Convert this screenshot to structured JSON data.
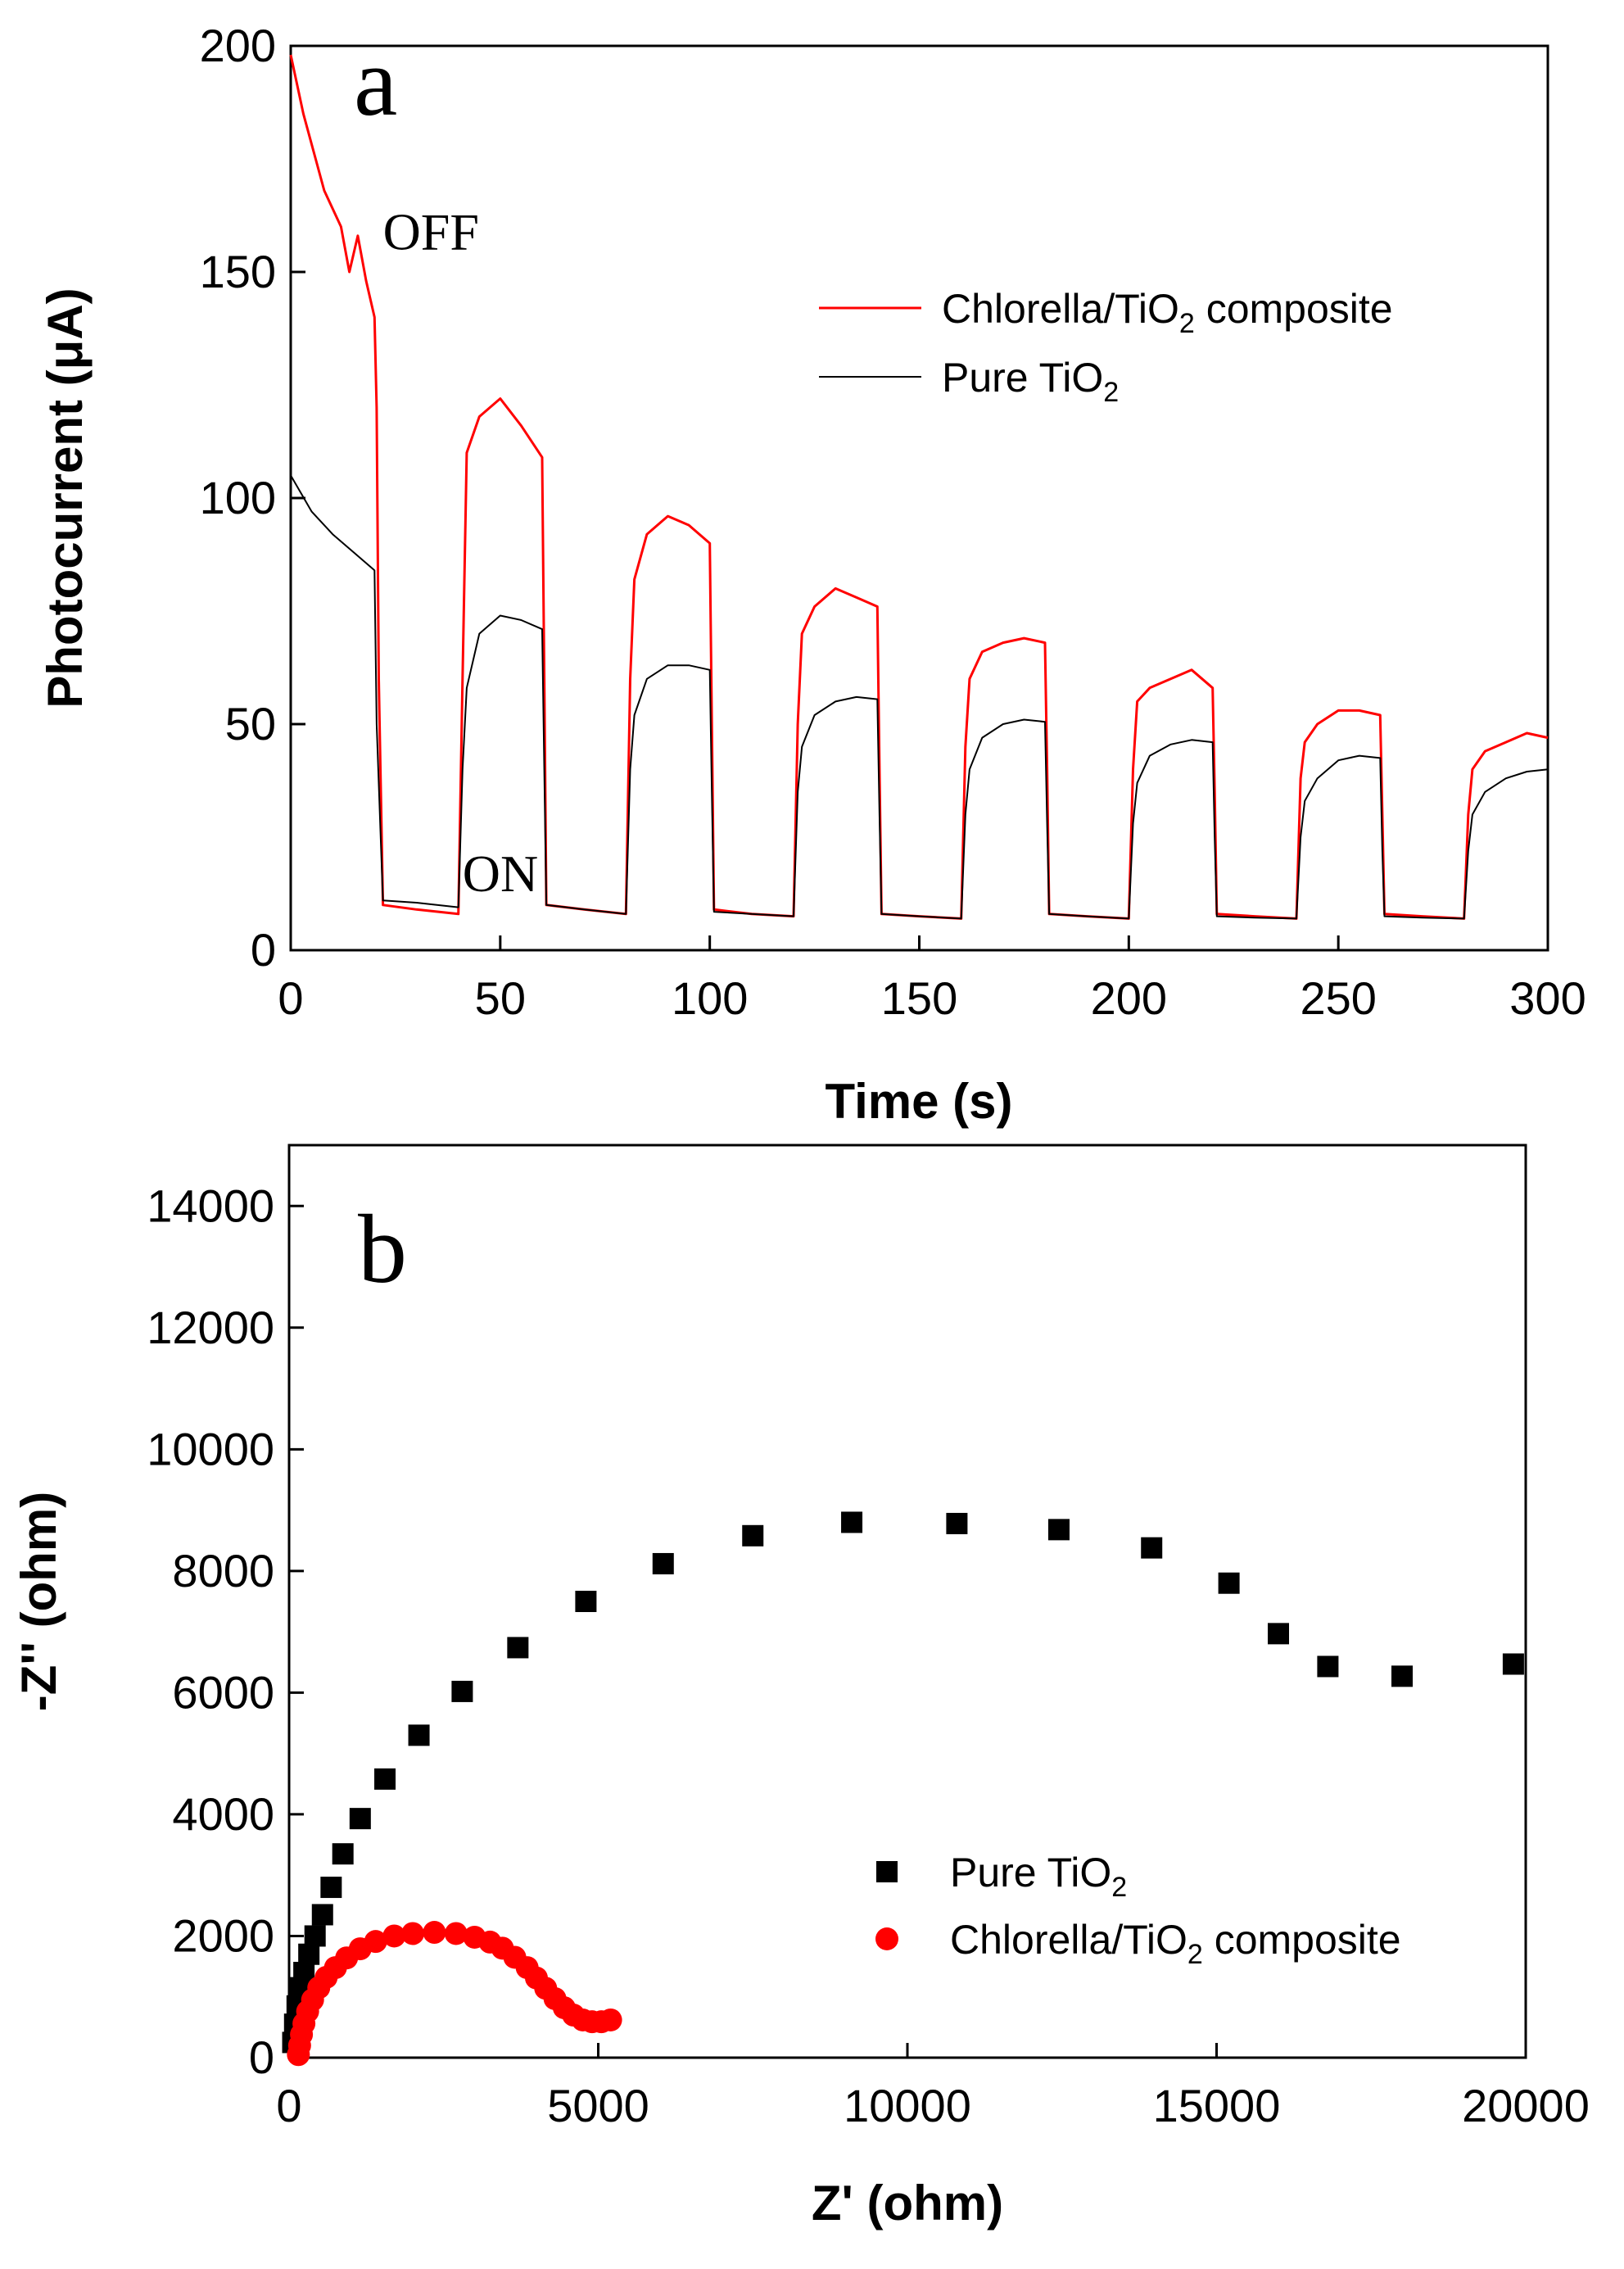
{
  "colors": {
    "red": "#ff0000",
    "black": "#000000"
  },
  "chart_data": [
    {
      "type": "line",
      "panel_label": "a",
      "xlabel": "Time (s)",
      "ylabel": "Photocurrent (μA)",
      "xlim": [
        0,
        300
      ],
      "ylim": [
        0,
        200
      ],
      "xticks": [
        "0",
        "50",
        "100",
        "150",
        "200",
        "250",
        "300"
      ],
      "yticks": [
        "0",
        "50",
        "100",
        "150",
        "200"
      ],
      "annotations": [
        {
          "text": "OFF",
          "x": 22,
          "y": 155
        },
        {
          "text": "ON",
          "x": 41,
          "y": 13
        }
      ],
      "legend": {
        "placement": "top-right",
        "entries": [
          {
            "prefix": "Chlorella/TiO",
            "sub": "2",
            "suffix": " composite",
            "color": "#ff0000"
          },
          {
            "prefix": "Pure TiO",
            "sub": "2",
            "suffix": "",
            "color": "#000000"
          }
        ]
      },
      "series": [
        {
          "name": "Chlorella/TiO2 composite",
          "color": "#ff0000",
          "points": [
            [
              0,
              198
            ],
            [
              3,
              185
            ],
            [
              8,
              168
            ],
            [
              12,
              160
            ],
            [
              14,
              150
            ],
            [
              16,
              158
            ],
            [
              18,
              148
            ],
            [
              20,
              140
            ],
            [
              20.5,
              120
            ],
            [
              21,
              60
            ],
            [
              22,
              10
            ],
            [
              30,
              9
            ],
            [
              40,
              8
            ],
            [
              41,
              60
            ],
            [
              42,
              110
            ],
            [
              45,
              118
            ],
            [
              50,
              122
            ],
            [
              55,
              116
            ],
            [
              60,
              109
            ],
            [
              60.5,
              60
            ],
            [
              61,
              10
            ],
            [
              70,
              9
            ],
            [
              80,
              8
            ],
            [
              81,
              60
            ],
            [
              82,
              82
            ],
            [
              85,
              92
            ],
            [
              90,
              96
            ],
            [
              95,
              94
            ],
            [
              100,
              90
            ],
            [
              100.5,
              50
            ],
            [
              101,
              9
            ],
            [
              110,
              8
            ],
            [
              120,
              7.5
            ],
            [
              121,
              50
            ],
            [
              122,
              70
            ],
            [
              125,
              76
            ],
            [
              130,
              80
            ],
            [
              135,
              78
            ],
            [
              140,
              76
            ],
            [
              140.5,
              40
            ],
            [
              141,
              8
            ],
            [
              150,
              7.5
            ],
            [
              160,
              7
            ],
            [
              161,
              45
            ],
            [
              162,
              60
            ],
            [
              165,
              66
            ],
            [
              170,
              68
            ],
            [
              175,
              69
            ],
            [
              180,
              68
            ],
            [
              180.5,
              40
            ],
            [
              181,
              8
            ],
            [
              190,
              7.5
            ],
            [
              200,
              7
            ],
            [
              201,
              40
            ],
            [
              202,
              55
            ],
            [
              205,
              58
            ],
            [
              210,
              60
            ],
            [
              215,
              62
            ],
            [
              220,
              58
            ],
            [
              220.5,
              35
            ],
            [
              221,
              8
            ],
            [
              230,
              7.5
            ],
            [
              240,
              7
            ],
            [
              241,
              38
            ],
            [
              242,
              46
            ],
            [
              245,
              50
            ],
            [
              250,
              53
            ],
            [
              255,
              53
            ],
            [
              260,
              52
            ],
            [
              260.5,
              30
            ],
            [
              261,
              8
            ],
            [
              270,
              7.5
            ],
            [
              280,
              7
            ],
            [
              281,
              30
            ],
            [
              282,
              40
            ],
            [
              285,
              44
            ],
            [
              290,
              46
            ],
            [
              295,
              48
            ],
            [
              300,
              47
            ]
          ]
        },
        {
          "name": "Pure TiO2",
          "color": "#000000",
          "points": [
            [
              0,
              105
            ],
            [
              5,
              97
            ],
            [
              10,
              92
            ],
            [
              15,
              88
            ],
            [
              20,
              84
            ],
            [
              20.5,
              50
            ],
            [
              22,
              11
            ],
            [
              30,
              10.5
            ],
            [
              40,
              9.5
            ],
            [
              41,
              40
            ],
            [
              42,
              58
            ],
            [
              45,
              70
            ],
            [
              50,
              74
            ],
            [
              55,
              73
            ],
            [
              60,
              71
            ],
            [
              60.5,
              40
            ],
            [
              61,
              10
            ],
            [
              70,
              9
            ],
            [
              80,
              8
            ],
            [
              81,
              40
            ],
            [
              82,
              52
            ],
            [
              85,
              60
            ],
            [
              90,
              63
            ],
            [
              95,
              63
            ],
            [
              100,
              62
            ],
            [
              100.5,
              35
            ],
            [
              101,
              8.5
            ],
            [
              110,
              8
            ],
            [
              120,
              7.5
            ],
            [
              121,
              35
            ],
            [
              122,
              45
            ],
            [
              125,
              52
            ],
            [
              130,
              55
            ],
            [
              135,
              56
            ],
            [
              140,
              55.5
            ],
            [
              140.5,
              30
            ],
            [
              141,
              8
            ],
            [
              150,
              7.5
            ],
            [
              160,
              7
            ],
            [
              161,
              30
            ],
            [
              162,
              40
            ],
            [
              165,
              47
            ],
            [
              170,
              50
            ],
            [
              175,
              51
            ],
            [
              180,
              50.5
            ],
            [
              180.5,
              28
            ],
            [
              181,
              8
            ],
            [
              190,
              7.5
            ],
            [
              200,
              7
            ],
            [
              201,
              28
            ],
            [
              202,
              37
            ],
            [
              205,
              43
            ],
            [
              210,
              45.5
            ],
            [
              215,
              46.5
            ],
            [
              220,
              46
            ],
            [
              220.5,
              25
            ],
            [
              221,
              7.5
            ],
            [
              230,
              7.2
            ],
            [
              240,
              7
            ],
            [
              241,
              25
            ],
            [
              242,
              33
            ],
            [
              245,
              38
            ],
            [
              250,
              42
            ],
            [
              255,
              43
            ],
            [
              260,
              42.5
            ],
            [
              260.5,
              22
            ],
            [
              261,
              7.5
            ],
            [
              270,
              7.2
            ],
            [
              280,
              7
            ],
            [
              281,
              22
            ],
            [
              282,
              30
            ],
            [
              285,
              35
            ],
            [
              290,
              38
            ],
            [
              295,
              39.5
            ],
            [
              300,
              40
            ]
          ]
        }
      ]
    },
    {
      "type": "scatter",
      "panel_label": "b",
      "xlabel": "Z' (ohm)",
      "ylabel": "-Z'' (ohm)",
      "xlim": [
        0,
        20000
      ],
      "ylim": [
        0,
        15000
      ],
      "xticks": [
        "0",
        "5000",
        "10000",
        "15000",
        "20000"
      ],
      "yticks": [
        "0",
        "2000",
        "4000",
        "6000",
        "8000",
        "10000",
        "12000",
        "14000"
      ],
      "legend": {
        "placement": "bottom-right",
        "entries": [
          {
            "prefix": "Pure TiO",
            "sub": "2",
            "suffix": "",
            "color": "#000000",
            "marker": "square"
          },
          {
            "prefix": "Chlorella/TiO",
            "sub": "2",
            "suffix": " composite",
            "color": "#ff0000",
            "marker": "circle"
          }
        ]
      },
      "series": [
        {
          "name": "Pure TiO2",
          "color": "#000000",
          "marker": "square",
          "points": [
            [
              60,
              250
            ],
            [
              90,
              550
            ],
            [
              130,
              850
            ],
            [
              180,
              1150
            ],
            [
              240,
              1400
            ],
            [
              320,
              1700
            ],
            [
              420,
              2000
            ],
            [
              540,
              2350
            ],
            [
              680,
              2800
            ],
            [
              870,
              3350
            ],
            [
              1150,
              3930
            ],
            [
              1550,
              4580
            ],
            [
              2100,
              5300
            ],
            [
              2800,
              6020
            ],
            [
              3700,
              6740
            ],
            [
              4800,
              7500
            ],
            [
              6050,
              8120
            ],
            [
              7500,
              8580
            ],
            [
              9100,
              8800
            ],
            [
              10800,
              8780
            ],
            [
              12450,
              8680
            ],
            [
              13950,
              8380
            ],
            [
              15200,
              7800
            ],
            [
              16000,
              6970
            ],
            [
              16800,
              6430
            ],
            [
              18000,
              6270
            ],
            [
              19800,
              6470
            ]
          ]
        },
        {
          "name": "Chlorella/TiO2 composite",
          "color": "#ff0000",
          "marker": "circle",
          "points": [
            [
              150,
              50
            ],
            [
              170,
              200
            ],
            [
              200,
              380
            ],
            [
              240,
              560
            ],
            [
              300,
              760
            ],
            [
              380,
              950
            ],
            [
              480,
              1150
            ],
            [
              600,
              1320
            ],
            [
              750,
              1480
            ],
            [
              930,
              1640
            ],
            [
              1150,
              1790
            ],
            [
              1400,
              1910
            ],
            [
              1700,
              2000
            ],
            [
              2000,
              2040
            ],
            [
              2350,
              2060
            ],
            [
              2700,
              2040
            ],
            [
              3000,
              1980
            ],
            [
              3250,
              1900
            ],
            [
              3450,
              1800
            ],
            [
              3650,
              1650
            ],
            [
              3850,
              1480
            ],
            [
              4000,
              1310
            ],
            [
              4150,
              1140
            ],
            [
              4300,
              970
            ],
            [
              4450,
              820
            ],
            [
              4600,
              700
            ],
            [
              4750,
              620
            ],
            [
              4900,
              590
            ],
            [
              5050,
              590
            ],
            [
              5200,
              620
            ]
          ]
        }
      ]
    }
  ]
}
